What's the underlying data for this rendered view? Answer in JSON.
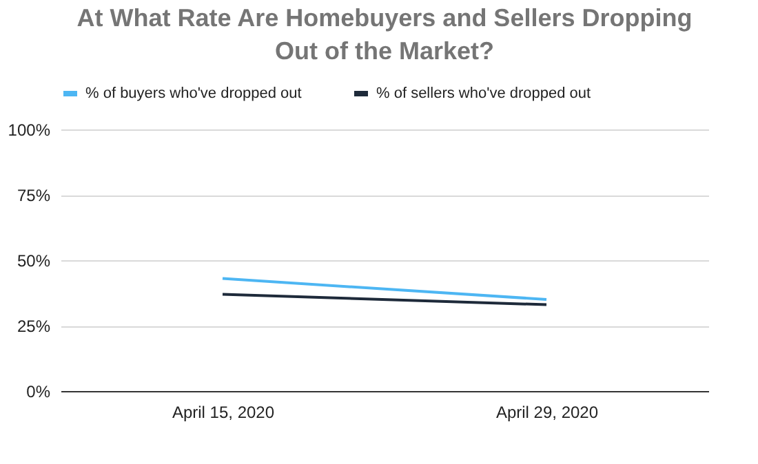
{
  "chart_data": {
    "type": "line",
    "title": "At What Rate Are Homebuyers and Sellers Dropping Out of the Market?",
    "categories": [
      "April 15, 2020",
      "April 29, 2020"
    ],
    "series": [
      {
        "name": "% of buyers who've dropped out",
        "color": "#4db6f3",
        "values": [
          43,
          35
        ]
      },
      {
        "name": "% of sellers who've dropped out",
        "color": "#1e2a3a",
        "values": [
          37,
          33
        ]
      }
    ],
    "ylim": [
      0,
      100
    ],
    "yticks": [
      {
        "value": 0,
        "label": "0%"
      },
      {
        "value": 25,
        "label": "25%"
      },
      {
        "value": 50,
        "label": "50%"
      },
      {
        "value": 75,
        "label": "75%"
      },
      {
        "value": 100,
        "label": "100%"
      }
    ],
    "grid": "y",
    "legend": "top",
    "marker": "none",
    "line_style": "solid"
  }
}
